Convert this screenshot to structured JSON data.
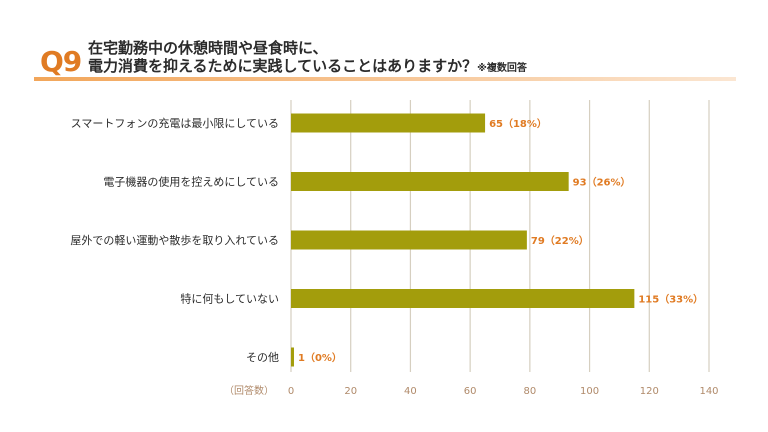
{
  "header": {
    "question_number": "Q9",
    "title_line1": "在宅勤務中の休憩時間や昼食時に、",
    "title_line2": "電力消費を抑えるために実践していることはありますか？",
    "title_note": "※複数回答"
  },
  "chart_data": {
    "type": "bar",
    "orientation": "horizontal",
    "title": "在宅勤務中の休憩時間や昼食時に、電力消費を抑えるために実践していることはありますか？",
    "categories": [
      "スマートフォンの充電は最小限にしている",
      "電子機器の使用を控えめにしている",
      "屋外での軽い運動や散歩を取り入れている",
      "特に何もしていない",
      "その他"
    ],
    "values": [
      65,
      93,
      79,
      115,
      1
    ],
    "data_labels": [
      "65（18%）",
      "93（26%）",
      "79（22%）",
      "115（33%）",
      "1（0%）"
    ],
    "xlabel": "（回答数）",
    "xlim": [
      0,
      140
    ],
    "xticks": [
      0,
      20,
      40,
      60,
      80,
      100,
      120,
      140
    ],
    "grid": "vertical",
    "colors": {
      "bar": "#a39d0c",
      "grid": "#d6cfc0",
      "value_label": "#e07b23",
      "tick": "#b08a6a",
      "accent": "#e07b23"
    }
  }
}
